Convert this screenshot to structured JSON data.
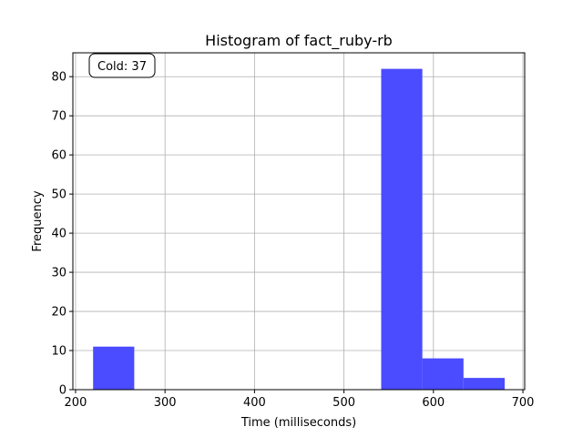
{
  "chart_data": {
    "type": "bar",
    "title": "Histogram of fact_ruby-rb",
    "xlabel": "Time (milliseconds)",
    "ylabel": "Frequency",
    "bins": [
      {
        "start": 219.6,
        "end": 265.6,
        "count": 11
      },
      {
        "start": 541.6,
        "end": 587.6,
        "count": 82
      },
      {
        "start": 587.6,
        "end": 633.6,
        "count": 8
      },
      {
        "start": 633.6,
        "end": 679.6,
        "count": 3
      }
    ],
    "xlim": [
      197,
      702
    ],
    "ylim": [
      0,
      86.1
    ],
    "xticks": [
      200,
      300,
      400,
      500,
      600,
      700
    ],
    "yticks": [
      0,
      10,
      20,
      30,
      40,
      50,
      60,
      70,
      80
    ],
    "grid": true,
    "bar_color": "#4b4bff",
    "annotation": "Cold: 37"
  }
}
